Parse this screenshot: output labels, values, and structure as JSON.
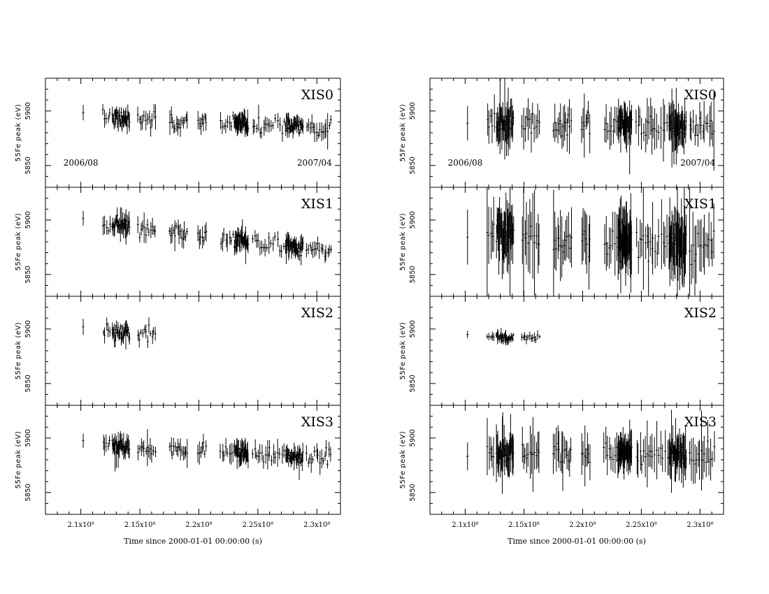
{
  "chart_data": [
    {
      "type": "scatter",
      "column": "left",
      "title": "",
      "xlabel": "Time since 2000-01-01 00:00:00 (s)",
      "ylabel": "55Fe peak (eV)",
      "xlim": [
        207000000,
        232000000
      ],
      "ylim": [
        5830,
        5930
      ],
      "x_tick_labels": [
        "2.1x10⁸",
        "2.15x10⁸",
        "2.2x10⁸",
        "2.25x10⁸",
        "2.3x10⁸"
      ],
      "x_ticks": [
        210000000,
        215000000,
        220000000,
        225000000,
        230000000
      ],
      "y_ticks": [
        5850,
        5900
      ],
      "annotations": [
        {
          "panel": "XIS0",
          "text": "2006/08",
          "x": 210000000,
          "y": 5850
        },
        {
          "panel": "XIS0",
          "text": "2007/04",
          "x": 229800000,
          "y": 5850
        }
      ],
      "series": [
        {
          "name": "XIS0",
          "base": 5895,
          "drift": -10,
          "scatter": 5,
          "err": 6
        },
        {
          "name": "XIS1",
          "base": 5900,
          "drift": -30,
          "scatter": 5,
          "err": 6
        },
        {
          "name": "XIS2",
          "base": 5897,
          "drift": -8,
          "scatter": 5,
          "err": 5
        },
        {
          "name": "XIS3",
          "base": 5894,
          "drift": -12,
          "scatter": 5,
          "err": 6
        }
      ]
    },
    {
      "type": "scatter",
      "column": "right",
      "title": "",
      "xlabel": "Time since 2000-01-01 00:00:00 (s)",
      "ylabel": "55Fe peak (eV)",
      "xlim": [
        207000000,
        232000000
      ],
      "ylim": [
        5830,
        5930
      ],
      "x_tick_labels": [
        "2.1x10⁸",
        "2.15x10⁸",
        "2.2x10⁸",
        "2.25x10⁸",
        "2.3x10⁸"
      ],
      "x_ticks": [
        210000000,
        215000000,
        220000000,
        225000000,
        230000000
      ],
      "y_ticks": [
        5850,
        5900
      ],
      "annotations": [
        {
          "panel": "XIS0",
          "text": "2006/08",
          "x": 210000000,
          "y": 5850
        },
        {
          "panel": "XIS0",
          "text": "2007/04",
          "x": 229800000,
          "y": 5850
        }
      ],
      "series": [
        {
          "name": "XIS0",
          "base": 5890,
          "drift": -5,
          "scatter": 7,
          "err": 13
        },
        {
          "name": "XIS1",
          "base": 5888,
          "drift": -12,
          "scatter": 10,
          "err": 22
        },
        {
          "name": "XIS2",
          "base": 5893,
          "drift": -3,
          "scatter": 2,
          "err": 3
        },
        {
          "name": "XIS3",
          "base": 5888,
          "drift": -5,
          "scatter": 7,
          "err": 13
        }
      ]
    }
  ],
  "observation_clusters": [
    {
      "t": 210200000,
      "n": 1,
      "w": 0
    },
    {
      "t": 212200000,
      "n": 5,
      "w": 700000
    },
    {
      "t": 213400000,
      "n": 30,
      "w": 1500000
    },
    {
      "t": 215600000,
      "n": 12,
      "w": 1600000
    },
    {
      "t": 218300000,
      "n": 14,
      "w": 1600000
    },
    {
      "t": 220300000,
      "n": 7,
      "w": 800000
    },
    {
      "t": 222400000,
      "n": 8,
      "w": 1200000
    },
    {
      "t": 223600000,
      "n": 30,
      "w": 1200000
    },
    {
      "t": 225300000,
      "n": 10,
      "w": 1500000
    },
    {
      "t": 226800000,
      "n": 10,
      "w": 1800000
    },
    {
      "t": 228100000,
      "n": 30,
      "w": 1500000
    },
    {
      "t": 230200000,
      "n": 16,
      "w": 2200000
    }
  ],
  "xis2_end_time": 216200000
}
